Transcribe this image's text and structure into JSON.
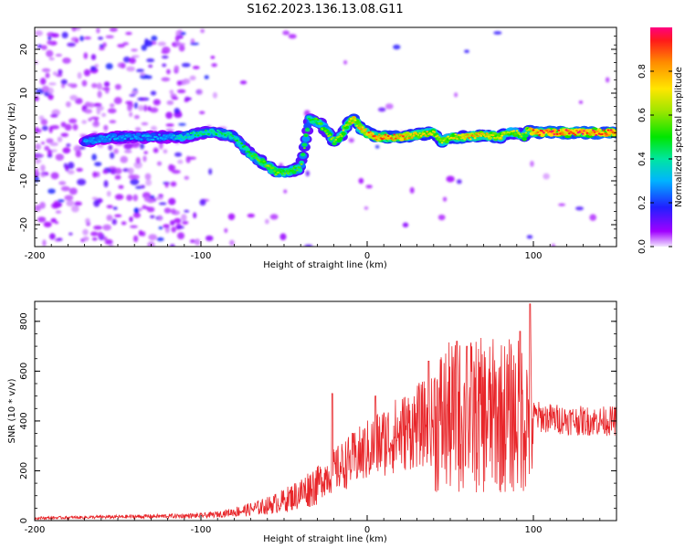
{
  "title": "S162.2023.136.13.08.G11",
  "colors": {
    "snr_line": "#e8262a",
    "spec_bg": "#ffffff"
  },
  "chart_data": [
    {
      "type": "heatmap",
      "xlabel": "Height of straight line (km)",
      "ylabel": "Frequency (Hz)",
      "xlim": [
        -200,
        150
      ],
      "ylim": [
        -25,
        25
      ],
      "xticks": [
        -200,
        -100,
        0,
        100
      ],
      "yticks": [
        -20,
        -10,
        0,
        10,
        20
      ],
      "colorbar": {
        "label": "Normalized spectral amplitude",
        "range": [
          0,
          1
        ],
        "ticks": [
          "0.0",
          "0.2",
          "0.4",
          "0.6",
          "0.8"
        ],
        "tick_values": [
          0,
          0.2,
          0.4,
          0.6,
          0.8
        ]
      },
      "ridge": {
        "x": [
          -170,
          -150,
          -120,
          -110,
          -100,
          -90,
          -80,
          -70,
          -62,
          -55,
          -48,
          -40,
          -35,
          -32,
          -28,
          -24,
          -20,
          -16,
          -12,
          -8,
          -4,
          0,
          5,
          10,
          20,
          30,
          40,
          45,
          50,
          55,
          60,
          70,
          80,
          85,
          90,
          95,
          97,
          100,
          110,
          130,
          150
        ],
        "y": [
          -1,
          0,
          0,
          0,
          1,
          1,
          0,
          -4,
          -6,
          -8,
          -8,
          -7,
          4,
          4,
          3,
          1,
          -1,
          0,
          3,
          4,
          2,
          1,
          0,
          0,
          0,
          0.5,
          1,
          -1,
          0,
          0,
          0,
          0.5,
          0,
          1,
          1,
          0,
          2,
          1,
          1,
          1,
          1
        ],
        "amplitude": [
          0.3,
          0.3,
          0.3,
          0.4,
          0.45,
          0.45,
          0.45,
          0.5,
          0.6,
          0.6,
          0.55,
          0.55,
          0.5,
          0.5,
          0.55,
          0.6,
          0.6,
          0.65,
          0.7,
          0.75,
          0.8,
          0.85,
          0.9,
          0.9,
          0.85,
          0.75,
          0.7,
          0.65,
          0.7,
          0.75,
          0.8,
          0.75,
          0.7,
          0.7,
          0.65,
          0.6,
          0.7,
          0.9,
          0.95,
          0.95,
          0.95
        ]
      }
    },
    {
      "type": "line",
      "xlabel": "Height of straight line (km)",
      "ylabel": "SNR (10 * v/v)",
      "xlim": [
        -200,
        150
      ],
      "ylim": [
        0,
        880
      ],
      "xticks": [
        -200,
        -100,
        0,
        100
      ],
      "yticks": [
        0,
        200,
        400,
        600,
        800
      ],
      "series": [
        {
          "envelope_x": [
            -200,
            -150,
            -100,
            -90,
            -80,
            -70,
            -60,
            -50,
            -40,
            -30,
            -25,
            -20,
            -15,
            -10,
            0,
            10,
            20,
            30,
            40,
            50,
            60,
            70,
            80,
            90,
            100,
            110,
            120,
            130,
            140,
            150
          ],
          "envelope_mean": [
            10,
            15,
            20,
            25,
            35,
            45,
            60,
            80,
            110,
            150,
            180,
            200,
            220,
            240,
            280,
            320,
            350,
            380,
            400,
            410,
            420,
            420,
            420,
            420,
            420,
            410,
            405,
            400,
            400,
            400
          ],
          "peaks": [
            {
              "x": -21,
              "y": 510
            },
            {
              "x": 5,
              "y": 500
            },
            {
              "x": 37,
              "y": 640
            },
            {
              "x": 54,
              "y": 720
            },
            {
              "x": 60,
              "y": 700
            },
            {
              "x": 92,
              "y": 760
            },
            {
              "x": 98,
              "y": 870
            }
          ]
        }
      ]
    }
  ]
}
